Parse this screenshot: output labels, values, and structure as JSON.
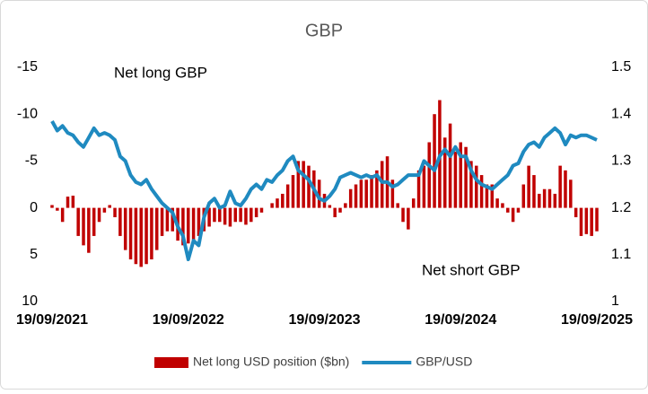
{
  "chart_data": {
    "type": "combo",
    "title": "GBP",
    "annotations": [
      "Net long GBP",
      "Net short GBP"
    ],
    "categories": [
      "19/09/2021",
      null,
      null,
      null,
      null,
      null,
      null,
      null,
      null,
      null,
      null,
      null,
      null,
      null,
      null,
      null,
      null,
      null,
      null,
      null,
      null,
      null,
      null,
      null,
      null,
      null,
      "19/09/2022",
      null,
      null,
      null,
      null,
      null,
      null,
      null,
      null,
      null,
      null,
      null,
      null,
      null,
      null,
      null,
      null,
      null,
      null,
      null,
      null,
      null,
      null,
      null,
      null,
      null,
      "19/09/2023",
      null,
      null,
      null,
      null,
      null,
      null,
      null,
      null,
      null,
      null,
      null,
      null,
      null,
      null,
      null,
      null,
      null,
      null,
      null,
      null,
      null,
      null,
      null,
      null,
      null,
      "19/09/2024",
      null,
      null,
      null,
      null,
      null,
      null,
      null,
      null,
      null,
      null,
      null,
      null,
      null,
      null,
      null,
      null,
      null,
      null,
      null,
      null,
      null,
      null,
      null,
      null,
      null,
      "19/09/2025"
    ],
    "series": [
      {
        "name": "Net long USD position ($bn)",
        "type": "bar",
        "axis": "y",
        "color": "#c00000",
        "values": [
          -0.3,
          0.3,
          1.5,
          -1.2,
          -1.3,
          3,
          4,
          4.8,
          3,
          1.5,
          0.5,
          -0.3,
          1,
          3,
          4.5,
          5.5,
          6,
          6.3,
          6,
          5.5,
          4.5,
          3,
          2.5,
          2.5,
          3.5,
          4,
          3.8,
          3.5,
          3,
          2.5,
          2,
          1.5,
          1.5,
          1.8,
          2,
          1.5,
          1.5,
          1.8,
          1.5,
          1,
          0.5,
          0,
          -0.5,
          -1,
          -1.5,
          -2.5,
          -3.5,
          -5,
          -5,
          -4.5,
          -4,
          -3,
          -1.5,
          -0.3,
          1,
          0.5,
          -0.5,
          -2,
          -2.5,
          -3,
          -3,
          -3.5,
          -4,
          -5,
          -5.5,
          -3,
          -0.5,
          1.5,
          2.3,
          -1,
          -4,
          -4.5,
          -7,
          -10,
          -11.5,
          -7.5,
          -9,
          -6,
          -7,
          -6.5,
          -5,
          -4.5,
          -3.5,
          -2.5,
          -2.5,
          -1,
          -0.5,
          0.5,
          1.5,
          0.5,
          -2.5,
          -4.5,
          -3.5,
          -1.5,
          -2,
          -2,
          -1.5,
          -4.5,
          -4,
          -3,
          1,
          3,
          2.8,
          3,
          2.5
        ]
      },
      {
        "name": "GBP/USD",
        "type": "line",
        "axis": "y2",
        "color": "#1f8ac0",
        "values": [
          1.385,
          1.365,
          1.375,
          1.36,
          1.355,
          1.34,
          1.33,
          1.35,
          1.37,
          1.355,
          1.36,
          1.355,
          1.345,
          1.31,
          1.3,
          1.27,
          1.255,
          1.25,
          1.26,
          1.24,
          1.225,
          1.21,
          1.2,
          1.19,
          1.16,
          1.14,
          1.09,
          1.13,
          1.12,
          1.18,
          1.21,
          1.22,
          1.2,
          1.205,
          1.235,
          1.21,
          1.205,
          1.22,
          1.24,
          1.25,
          1.24,
          1.26,
          1.255,
          1.27,
          1.28,
          1.3,
          1.31,
          1.28,
          1.27,
          1.26,
          1.24,
          1.22,
          1.215,
          1.225,
          1.24,
          1.265,
          1.27,
          1.275,
          1.27,
          1.265,
          1.27,
          1.265,
          1.27,
          1.255,
          1.255,
          1.245,
          1.25,
          1.26,
          1.27,
          1.27,
          1.27,
          1.3,
          1.29,
          1.28,
          1.31,
          1.325,
          1.31,
          1.33,
          1.31,
          1.31,
          1.28,
          1.26,
          1.25,
          1.245,
          1.24,
          1.25,
          1.26,
          1.27,
          1.29,
          1.295,
          1.32,
          1.335,
          1.34,
          1.33,
          1.35,
          1.36,
          1.37,
          1.36,
          1.335,
          1.355,
          1.35,
          1.355,
          1.355,
          1.35,
          1.345
        ]
      }
    ],
    "ylim": [
      10,
      -15
    ],
    "yticks": [
      -15,
      -10,
      -5,
      0,
      5,
      10
    ],
    "y2lim": [
      1,
      1.5
    ],
    "y2ticks": [
      1.5,
      1.4,
      1.3,
      1.2,
      1.1,
      1
    ],
    "grid": false,
    "legend": "bottom"
  }
}
